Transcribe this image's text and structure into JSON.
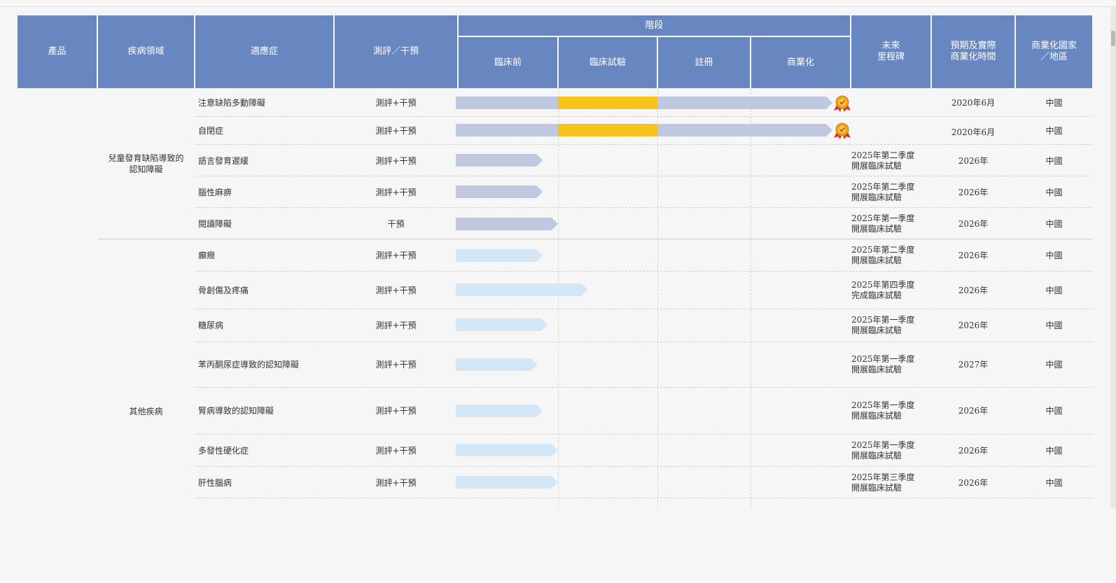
{
  "header": {
    "product": "產品",
    "disease_area": "疾病領域",
    "indication": "適應症",
    "assessment_intervention": "測評／干預",
    "stage": "階段",
    "stages": [
      "臨床前",
      "臨床試驗",
      "註冊",
      "商業化"
    ],
    "future_milestone": "未來\n里程碑",
    "commercialization_time": "預期及實際\n商業化時間",
    "commercialization_region": "商業化國家\n／地區"
  },
  "groups": [
    {
      "disease_area": "兒童發育缺陷導致的\n認知障礙"
    },
    {
      "disease_area": "其他疾病"
    }
  ],
  "rows": [
    {
      "indication": "注意缺陷多動障礙",
      "type": "測評+干預",
      "milestone": "",
      "time": "2020年6月",
      "region": "中國",
      "progress": 3.75,
      "highlight": [
        1,
        2
      ],
      "award": true,
      "color": "#c0c8e0"
    },
    {
      "indication": "自閉症",
      "type": "測評+干預",
      "milestone": "",
      "time": "2020年6月",
      "region": "中國",
      "progress": 3.75,
      "highlight": [
        1,
        2
      ],
      "award": true,
      "color": "#c0c8e0"
    },
    {
      "indication": "語言發育遲緩",
      "type": "測評+干預",
      "milestone": "2025年第二季度\n開展臨床試驗",
      "time": "2026年",
      "region": "中國",
      "progress": 0.85,
      "highlight": null,
      "award": false,
      "color": "#c0c8e0"
    },
    {
      "indication": "腦性麻痹",
      "type": "測評+干預",
      "milestone": "2025年第二季度\n開展臨床試驗",
      "time": "2026年",
      "region": "中國",
      "progress": 0.85,
      "highlight": null,
      "award": false,
      "color": "#c0c8e0"
    },
    {
      "indication": "閱讀障礙",
      "type": "干預",
      "milestone": "2025年第一季度\n開展臨床試驗",
      "time": "2026年",
      "region": "中國",
      "progress": 1.0,
      "highlight": null,
      "award": false,
      "color": "#c0c8e0"
    },
    {
      "indication": "癲癇",
      "type": "測評+干預",
      "milestone": "2025年第二季度\n開展臨床試驗",
      "time": "2026年",
      "region": "中國",
      "progress": 0.85,
      "highlight": null,
      "award": false,
      "color": "#d3e7f6"
    },
    {
      "indication": "骨創傷及疼痛",
      "type": "測評+干預",
      "milestone": "2025年第四季度\n完成臨床試驗",
      "time": "2026年",
      "region": "中國",
      "progress": 1.3,
      "highlight": null,
      "award": false,
      "color": "#d3e7f6"
    },
    {
      "indication": "糖尿病",
      "type": "測評+干預",
      "milestone": "2025年第一季度\n開展臨床試驗",
      "time": "2026年",
      "region": "中國",
      "progress": 0.9,
      "highlight": null,
      "award": false,
      "color": "#d3e7f6"
    },
    {
      "indication": "苯丙酮尿症導致的認知障礙",
      "type": "測評+干預",
      "milestone": "2025年第一季度\n開展臨床試驗",
      "time": "2027年",
      "region": "中國",
      "progress": 0.8,
      "highlight": null,
      "award": false,
      "color": "#d3e7f6"
    },
    {
      "indication": "腎病導致的認知障礙",
      "type": "測評+干預",
      "milestone": "2025年第一季度\n開展臨床試驗",
      "time": "2026年",
      "region": "中國",
      "progress": 0.85,
      "highlight": null,
      "award": false,
      "color": "#d3e7f6"
    },
    {
      "indication": "多發性硬化症",
      "type": "測評+干預",
      "milestone": "2025年第一季度\n開展臨床試驗",
      "time": "2026年",
      "region": "中國",
      "progress": 1.0,
      "highlight": null,
      "award": false,
      "color": "#d3e7f6"
    },
    {
      "indication": "肝性腦病",
      "type": "測評+干預",
      "milestone": "2025年第三季度\n開展臨床試驗",
      "time": "2026年",
      "region": "中國",
      "progress": 1.0,
      "highlight": null,
      "award": false,
      "color": "#d3e7f6"
    }
  ],
  "colors": {
    "header_bg": "#6886c0",
    "highlight": "#f7c21b",
    "award": "#e8a317"
  }
}
